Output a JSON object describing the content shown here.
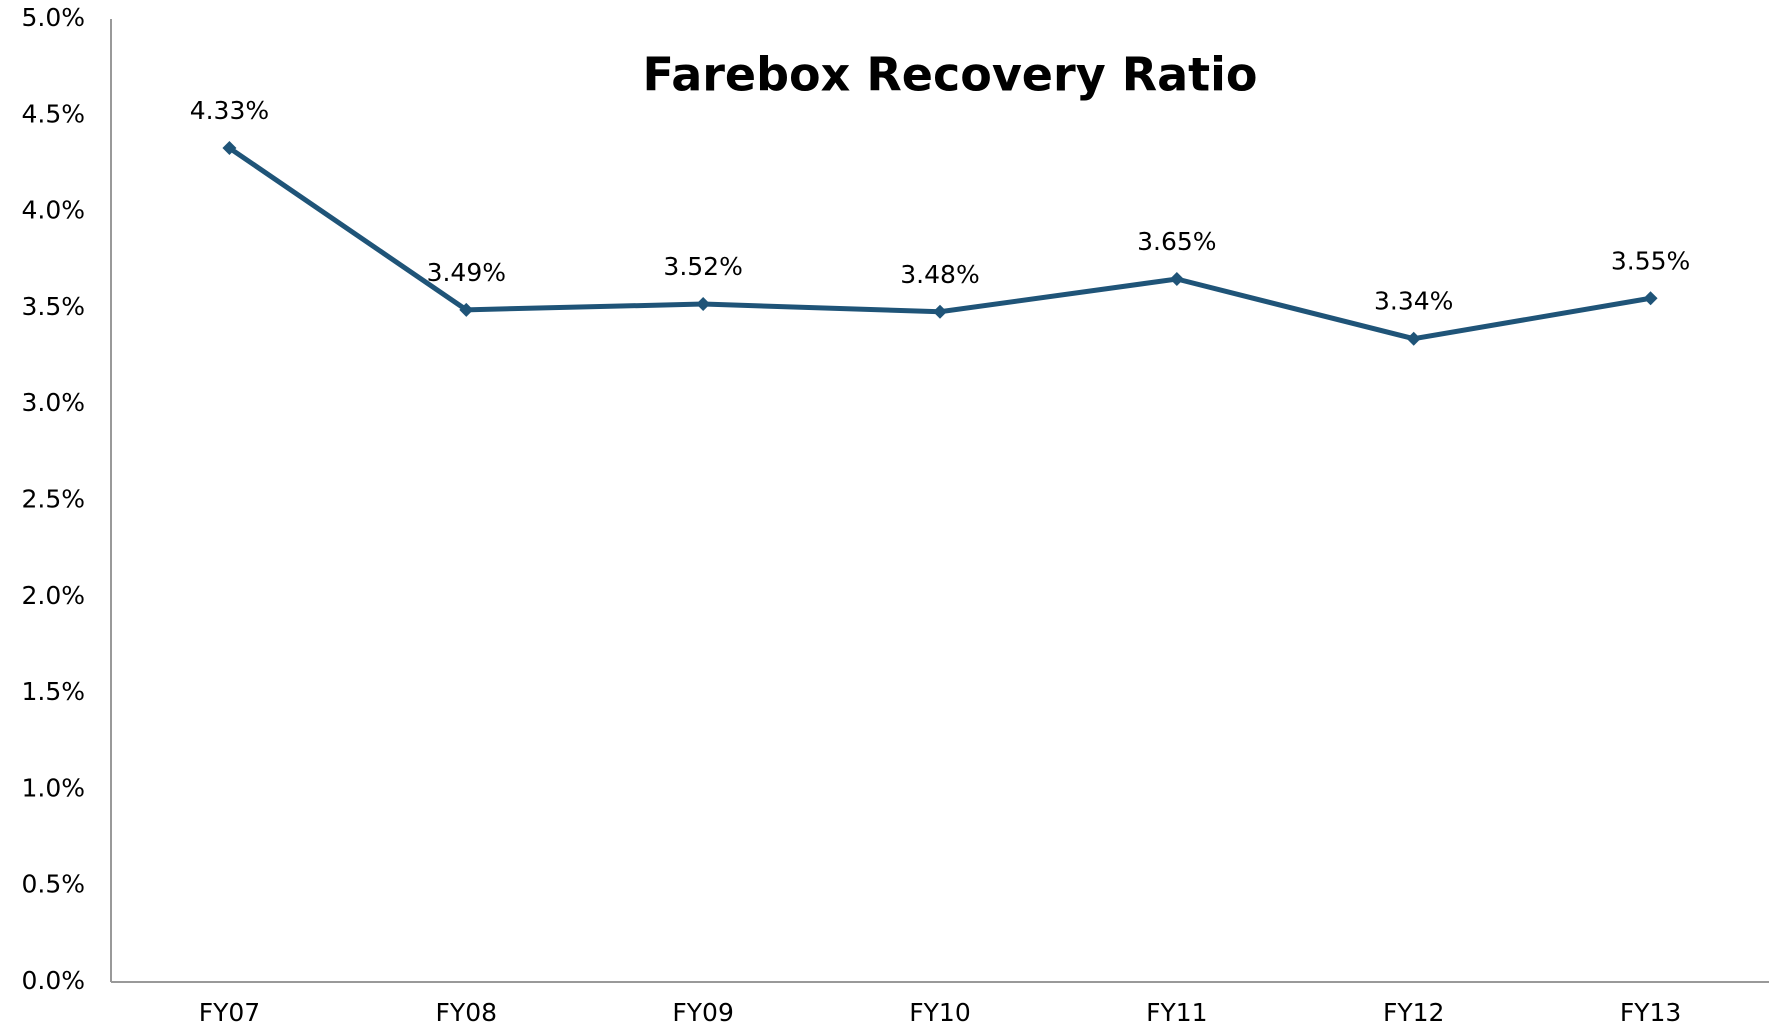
{
  "chart_data": {
    "type": "line",
    "title": "Farebox Recovery Ratio",
    "categories": [
      "FY07",
      "FY08",
      "FY09",
      "FY10",
      "FY11",
      "FY12",
      "FY13"
    ],
    "series": [
      {
        "name": "Farebox Recovery Ratio",
        "color": "#1f5478",
        "values": [
          4.33,
          3.49,
          3.52,
          3.48,
          3.65,
          3.34,
          3.55
        ],
        "value_labels": [
          "4.33%",
          "3.49%",
          "3.52%",
          "3.48%",
          "3.65%",
          "3.34%",
          "3.55%"
        ]
      }
    ],
    "ylim": [
      0,
      5
    ],
    "yticks": [
      {
        "value": 0,
        "label": "0.0%"
      },
      {
        "value": 0.5,
        "label": "0.5%"
      },
      {
        "value": 1,
        "label": "1.0%"
      },
      {
        "value": 1.5,
        "label": "1.5%"
      },
      {
        "value": 2,
        "label": "2.0%"
      },
      {
        "value": 2.5,
        "label": "2.5%"
      },
      {
        "value": 3,
        "label": "3.0%"
      },
      {
        "value": 3.5,
        "label": "3.5%"
      },
      {
        "value": 4,
        "label": "4.0%"
      },
      {
        "value": 4.5,
        "label": "4.5%"
      },
      {
        "value": 5,
        "label": "5.0%"
      }
    ],
    "grid": false
  }
}
